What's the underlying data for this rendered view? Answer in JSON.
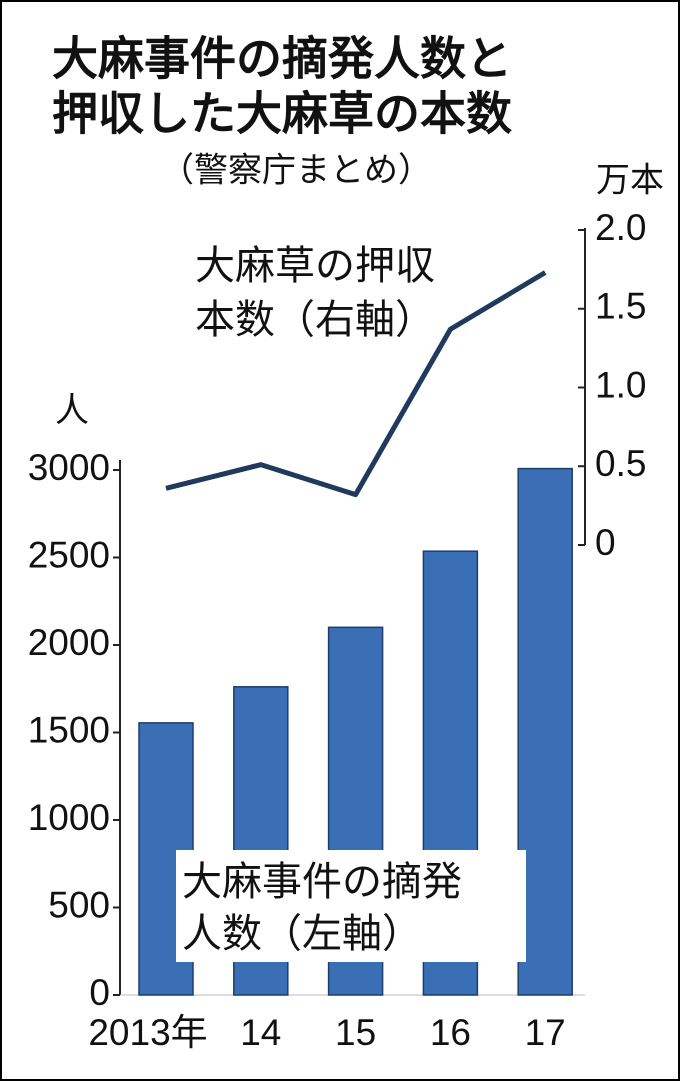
{
  "chart_data": {
    "type": "bar",
    "title": [
      "大麻事件の摘発人数と",
      "押収した大麻草の本数"
    ],
    "subtitle": "（警察庁まとめ）",
    "y_label": "人",
    "y2_label": "万本",
    "categories": [
      "2013年",
      "14",
      "15",
      "16",
      "17"
    ],
    "series": [
      {
        "name": [
          "大麻事件の摘発",
          "人数（左軸）"
        ],
        "type": "bar",
        "color": "#3a6fb5",
        "values": [
          1555,
          1761,
          2101,
          2536,
          3008
        ]
      },
      {
        "name": [
          "大麻草の押収",
          "本数（右軸）"
        ],
        "type": "line",
        "axis": "y2",
        "color": "#1f3a5c",
        "values": [
          0.36,
          0.51,
          0.32,
          1.37,
          1.73
        ]
      }
    ],
    "ylim": [
      0,
      3000
    ],
    "yticks": [
      0,
      500,
      1000,
      1500,
      2000,
      2500,
      3000
    ],
    "y2lim": [
      0,
      2
    ],
    "y2ticks": [
      0,
      0.5,
      {
        "value": 1,
        "label": "1.0"
      },
      1.5,
      {
        "value": 2,
        "label": "2.0"
      }
    ]
  }
}
